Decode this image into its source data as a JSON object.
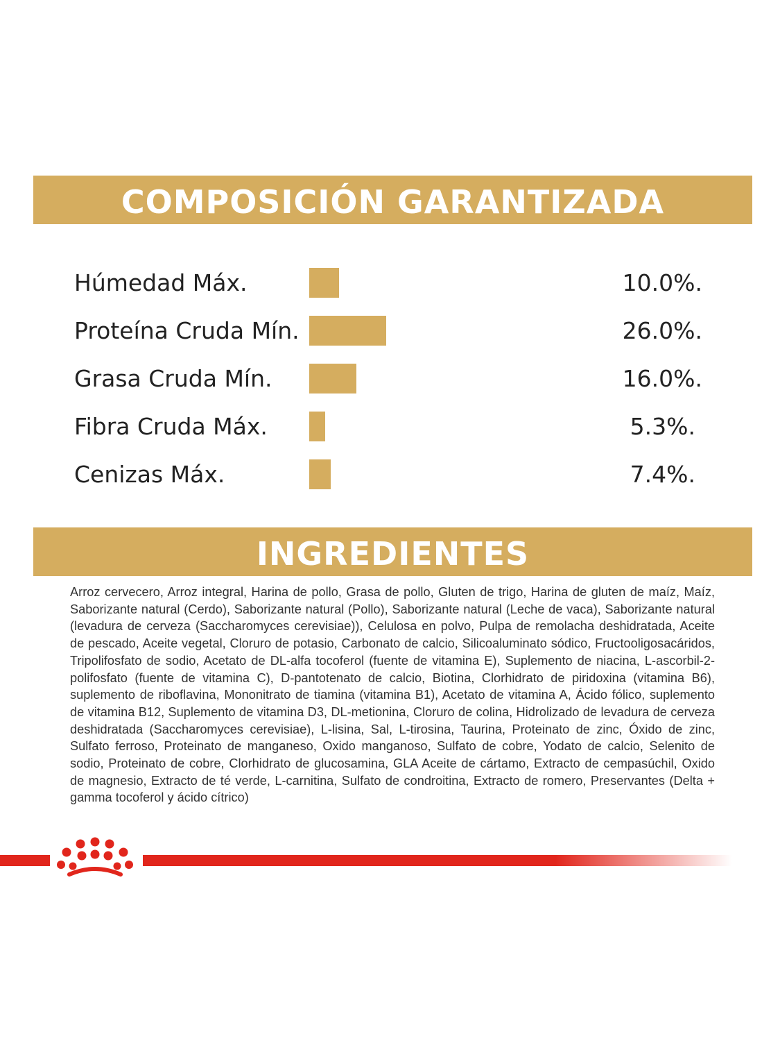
{
  "composition": {
    "title": "COMPOSICIÓN GARANTIZADA",
    "rows": [
      {
        "label": "Húmedad Máx.",
        "value": "10.0%.",
        "percent": 10.0
      },
      {
        "label": "Proteína Cruda Mín.",
        "value": "26.0%.",
        "percent": 26.0
      },
      {
        "label": "Grasa Cruda Mín.",
        "value": "16.0%.",
        "percent": 16.0
      },
      {
        "label": "Fibra Cruda Máx.",
        "value": "5.3%.",
        "percent": 5.3
      },
      {
        "label": "Cenizas Máx.",
        "value": "7.4%.",
        "percent": 7.4
      }
    ]
  },
  "ingredients": {
    "title": "INGREDIENTES",
    "text": "Arroz cervecero, Arroz integral, Harina de pollo, Grasa de pollo, Gluten de trigo, Harina de gluten de maíz, Maíz, Saborizante natural (Cerdo), Saborizante natural (Pollo), Saborizante natural (Leche de vaca), Saborizante natural (levadura de cerveza (Saccharomyces cerevisiae)), Celulosa en polvo, Pulpa de remolacha deshidratada, Aceite de pescado, Aceite vegetal, Cloruro de potasio, Carbonato de calcio, Silicoaluminato sódico, Fructooligosacáridos, Tripolifosfato de sodio, Acetato de DL-alfa tocoferol (fuente de vitamina E), Suplemento de niacina, L-ascorbil-2-polifosfato (fuente de vitamina C), D-pantotenato de calcio, Biotina, Clorhidrato de piridoxina (vitamina B6), suplemento de riboflavina, Mononitrato de tiamina (vitamina B1), Acetato de vitamina A, Ácido fólico, suplemento de vitamina B12, Suplemento de vitamina D3, DL-metionina, Cloruro de colina, Hidrolizado de levadura de cerveza deshidratada (Saccharomyces cerevisiae), L-lisina, Sal, L-tirosina, Taurina, Proteinato de zinc, Óxido de zinc, Sulfato ferroso, Proteinato de manganeso, Oxido manganoso, Sulfato de cobre, Yodato de calcio, Selenito de sodio, Proteinato de cobre, Clorhidrato de glucosamina, GLA Aceite de cártamo, Extracto de cempasúchil, Oxido de magnesio, Extracto de té verde, L-carnitina, Sulfato de condroitina, Extracto de romero, Preservantes (Delta + gamma tocoferol y ácido cítrico)"
  },
  "colors": {
    "gold": "#d5ad5f",
    "brand_red": "#e1261c"
  },
  "footer": {
    "logo_icon": "royal-canin-crown-icon"
  }
}
